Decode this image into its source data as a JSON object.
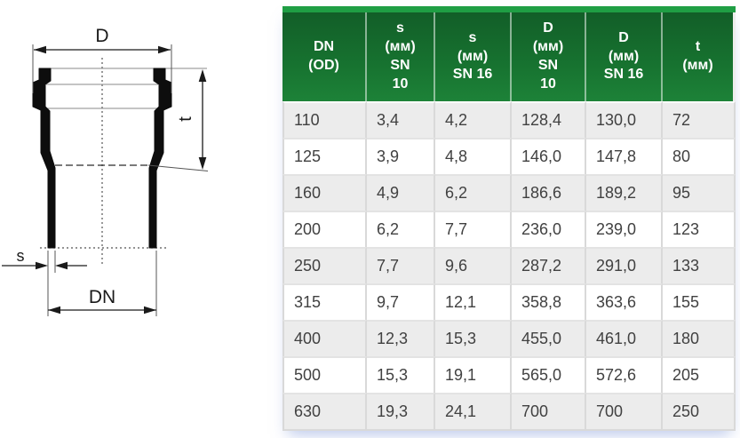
{
  "page": {
    "background": "#ffffff"
  },
  "diagram": {
    "labels": {
      "outer_diameter": "D",
      "socket_depth": "t",
      "wall_thickness": "s",
      "nominal_diameter": "DN"
    }
  },
  "table": {
    "columns": [
      "DN\n(OD)",
      "s\n(мм)\nSN\n10",
      "s\n(мм)\nSN 16",
      "D\n(мм)\nSN\n10",
      "D\n(мм)\nSN 16",
      "t\n(мм)"
    ],
    "rows": [
      [
        "110",
        "3,4",
        "4,2",
        "128,4",
        "130,0",
        "72"
      ],
      [
        "125",
        "3,9",
        "4,8",
        "146,0",
        "147,8",
        "80"
      ],
      [
        "160",
        "4,9",
        "6,2",
        "186,6",
        "189,2",
        "95"
      ],
      [
        "200",
        "6,2",
        "7,7",
        "236,0",
        "239,0",
        "123"
      ],
      [
        "250",
        "7,7",
        "9,6",
        "287,2",
        "291,0",
        "133"
      ],
      [
        "315",
        "9,7",
        "12,1",
        "358,8",
        "363,6",
        "155"
      ],
      [
        "400",
        "12,3",
        "15,3",
        "455,0",
        "461,0",
        "180"
      ],
      [
        "500",
        "15,3",
        "19,1",
        "565,0",
        "572,6",
        "205"
      ],
      [
        "630",
        "19,3",
        "24,1",
        "700",
        "700",
        "250"
      ]
    ],
    "colors": {
      "header_bg": "#17712d",
      "header_top_strip": "#1f9e44",
      "row_alt_bg": "#ececec",
      "border": "#d9d9d9",
      "header_text": "#ffffff",
      "body_text": "#414141"
    }
  }
}
